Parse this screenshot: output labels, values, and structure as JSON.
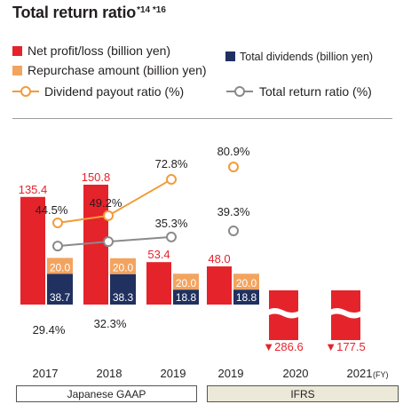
{
  "title": "Total return ratio",
  "title_note": "*14 *16",
  "colors": {
    "net_profit": "#e5232b",
    "repurchase": "#f2a45f",
    "dividends": "#20305f",
    "payout_ratio": "#f29b38",
    "total_return_ratio": "#8a8a8a",
    "ifrs_band": "#ece9d9",
    "text_red": "#e5232b"
  },
  "legend": {
    "net_profit": "Net profit/loss (billion yen)",
    "dividends": "Total dividends (billion yen)",
    "repurchase": "Repurchase amount (billion yen)",
    "payout_ratio": "Dividend payout ratio (%)",
    "total_return_ratio": "Total return ratio (%)"
  },
  "categories": [
    "2017",
    "2018",
    "2019",
    "2019",
    "2020",
    "2021"
  ],
  "fy_suffix": "(FY)",
  "accounting_labels": [
    "Japanese GAAP",
    "IFRS"
  ],
  "chart_data": {
    "type": "bar",
    "categories": [
      "2017",
      "2018",
      "2019",
      "2019",
      "2020",
      "2021"
    ],
    "groups": [
      {
        "label": "Japanese GAAP",
        "categories": [
          "2017",
          "2018",
          "2019"
        ]
      },
      {
        "label": "IFRS",
        "categories": [
          "2019",
          "2020",
          "2021"
        ]
      }
    ],
    "series": [
      {
        "name": "Net profit/loss (billion yen)",
        "kind": "bar",
        "values": [
          135.4,
          150.8,
          53.4,
          48.0,
          -286.6,
          -177.5
        ],
        "labels": [
          "135.4",
          "150.8",
          "53.4",
          "48.0",
          "▼286.6",
          "▼177.5"
        ]
      },
      {
        "name": "Total dividends (billion yen)",
        "kind": "bar",
        "values": [
          38.7,
          38.3,
          18.8,
          18.8,
          null,
          null
        ],
        "labels": [
          "38.7",
          "38.3",
          "18.8",
          "18.8",
          "",
          ""
        ]
      },
      {
        "name": "Repurchase amount (billion yen)",
        "kind": "bar",
        "values": [
          20.0,
          20.0,
          20.0,
          20.0,
          null,
          null
        ],
        "labels": [
          "20.0",
          "20.0",
          "20.0",
          "20.0",
          "",
          ""
        ]
      },
      {
        "name": "Dividend payout ratio (%)",
        "kind": "line",
        "values": [
          44.5,
          49.2,
          72.8,
          80.9,
          null,
          null
        ],
        "labels": [
          "44.5%",
          "49.2%",
          "72.8%",
          "80.9%",
          "",
          ""
        ]
      },
      {
        "name": "Total return ratio (%)",
        "kind": "line",
        "values": [
          29.4,
          32.3,
          35.3,
          39.3,
          null,
          null
        ],
        "labels": [
          "29.4%",
          "32.3%",
          "35.3%",
          "39.3%",
          "",
          ""
        ]
      }
    ],
    "axis_break_on_negative_bars": true,
    "legend_position": "top"
  }
}
